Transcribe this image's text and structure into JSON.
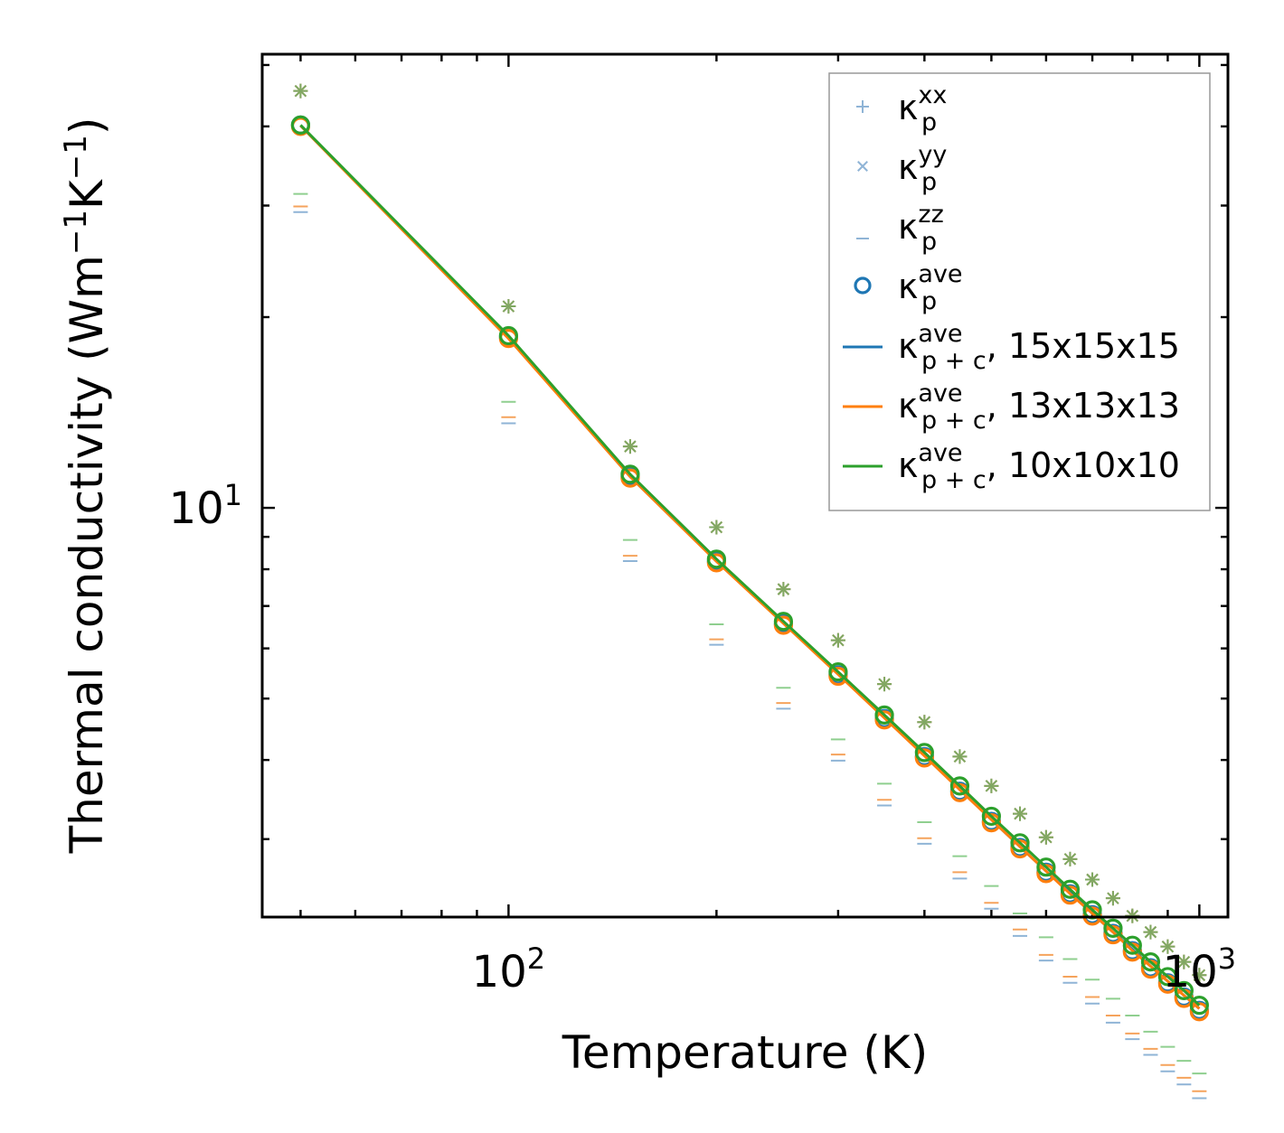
{
  "chart_data": {
    "type": "scatter",
    "scale": {
      "x": "log",
      "y": "log"
    },
    "xlabel": "Temperature (K)",
    "ylabel": "Thermal conductivity (Wm",
    "ylabel_sup1": "−1",
    "ylabel_mid": "K",
    "ylabel_sup2": "−1",
    "ylabel_end": ")",
    "xlim": [
      44,
      1100
    ],
    "ylim": [
      2.26,
      52
    ],
    "xticks": [
      {
        "base": "10",
        "exp": "2",
        "value": 100
      },
      {
        "base": "10",
        "exp": "3",
        "value": 1000
      }
    ],
    "yticks": [
      {
        "base": "10",
        "exp": "1",
        "value": 10
      }
    ],
    "x": [
      50,
      100,
      150,
      200,
      250,
      300,
      350,
      400,
      450,
      500,
      550,
      600,
      650,
      700,
      750,
      800,
      850,
      900,
      950,
      1000
    ],
    "series": [
      {
        "name": "kappa_p_xx",
        "color": "#8fb4d6",
        "marker": "plus",
        "values": [
          45.5,
          20.8,
          12.5,
          9.32,
          7.44,
          6.18,
          5.27,
          4.59,
          4.05,
          3.64,
          3.29,
          3.02,
          2.79,
          2.59,
          2.42,
          2.27,
          2.14,
          2.03,
          1.92,
          1.83
        ]
      },
      {
        "name": "kappa_p_yy",
        "color": "#8fb4d6",
        "marker": "x",
        "values": [
          45.5,
          20.8,
          12.5,
          9.32,
          7.44,
          6.18,
          5.27,
          4.59,
          4.05,
          3.64,
          3.29,
          3.02,
          2.79,
          2.59,
          2.42,
          2.27,
          2.14,
          2.03,
          1.92,
          1.83
        ]
      },
      {
        "name": "kappa_p_zz",
        "color": "#8fb4d6",
        "marker": "hline",
        "values": [
          29.3,
          13.6,
          8.24,
          6.08,
          4.82,
          3.99,
          3.39,
          2.95,
          2.6,
          2.33,
          2.11,
          1.93,
          1.78,
          1.65,
          1.54,
          1.45,
          1.37,
          1.29,
          1.23,
          1.17
        ]
      },
      {
        "name": "kappa_p_ave",
        "color": "#1f77b4",
        "marker": "circle",
        "values": [
          40.2,
          18.6,
          11.2,
          8.23,
          6.56,
          5.45,
          4.65,
          4.05,
          3.57,
          3.2,
          2.91,
          2.66,
          2.46,
          2.28,
          2.13,
          2.0,
          1.88,
          1.78,
          1.69,
          1.61
        ]
      },
      {
        "name": "kappa_p+c_ave 15x15x15",
        "color": "#1f77b4",
        "marker": "line",
        "values": [
          40.1,
          18.6,
          11.2,
          8.24,
          6.58,
          5.47,
          4.67,
          4.07,
          3.6,
          3.22,
          2.92,
          2.67,
          2.47,
          2.29,
          2.14,
          2.01,
          1.89,
          1.79,
          1.7,
          1.62
        ]
      },
      {
        "name": "kappa_p+c_ave 13x13x13",
        "color": "#ff7f0e",
        "marker": "line",
        "values": [
          40.1,
          18.5,
          11.2,
          8.23,
          6.57,
          5.46,
          4.66,
          4.06,
          3.59,
          3.22,
          2.92,
          2.67,
          2.46,
          2.29,
          2.14,
          2.0,
          1.89,
          1.79,
          1.7,
          1.62
        ]
      },
      {
        "name": "kappa_p+c_ave 10x10x10",
        "color": "#2ca02c",
        "marker": "line",
        "values": [
          40.2,
          18.7,
          11.3,
          8.3,
          6.62,
          5.51,
          4.71,
          4.11,
          3.64,
          3.26,
          2.96,
          2.71,
          2.5,
          2.32,
          2.17,
          2.04,
          1.92,
          1.82,
          1.73,
          1.64
        ]
      },
      {
        "name": "kappa_p_ave 10x10x10 circles",
        "color": "#2ca02c",
        "marker": "circle",
        "values": [
          40.2,
          18.7,
          11.3,
          8.3,
          6.62,
          5.51,
          4.71,
          4.11,
          3.64,
          3.26,
          2.96,
          2.71,
          2.5,
          2.32,
          2.17,
          2.04,
          1.92,
          1.82,
          1.73,
          1.64
        ]
      }
    ],
    "zz_offsets_note": "zz markers drawn for three meshes with slight spread",
    "zz_mesh_values": {
      "orange": [
        29.9,
        13.9,
        8.4,
        6.2,
        4.92,
        4.08,
        3.46,
        3.01,
        2.66,
        2.38,
        2.16,
        1.97,
        1.82,
        1.69,
        1.58,
        1.48,
        1.4,
        1.32,
        1.26,
        1.2
      ],
      "green": [
        31.3,
        14.7,
        8.9,
        6.55,
        5.2,
        4.31,
        3.67,
        3.19,
        2.82,
        2.53,
        2.29,
        2.1,
        1.94,
        1.8,
        1.68,
        1.58,
        1.49,
        1.41,
        1.34,
        1.28
      ]
    },
    "xy_mesh_colors": [
      "#f5a35c",
      "#7ea862"
    ],
    "legend": {
      "placement": "top-right",
      "entries": [
        {
          "sym": "κ",
          "sub": "p",
          "sup": "xx",
          "suffix": "",
          "marker": "plus",
          "color": "#8fb4d6"
        },
        {
          "sym": "κ",
          "sub": "p",
          "sup": "yy",
          "suffix": "",
          "marker": "x",
          "color": "#8fb4d6"
        },
        {
          "sym": "κ",
          "sub": "p",
          "sup": "zz",
          "suffix": "",
          "marker": "hline",
          "color": "#8fb4d6"
        },
        {
          "sym": "κ",
          "sub": "p",
          "sup": "ave",
          "suffix": "",
          "marker": "circle",
          "color": "#1f77b4"
        },
        {
          "sym": "κ",
          "sub": "p + c",
          "sup": "ave",
          "suffix": ", 15x15x15",
          "marker": "line",
          "color": "#1f77b4"
        },
        {
          "sym": "κ",
          "sub": "p + c",
          "sup": "ave",
          "suffix": ", 13x13x13",
          "marker": "line",
          "color": "#ff7f0e"
        },
        {
          "sym": "κ",
          "sub": "p + c",
          "sup": "ave",
          "suffix": ", 10x10x10",
          "marker": "line",
          "color": "#2ca02c"
        }
      ]
    },
    "grid": false
  }
}
